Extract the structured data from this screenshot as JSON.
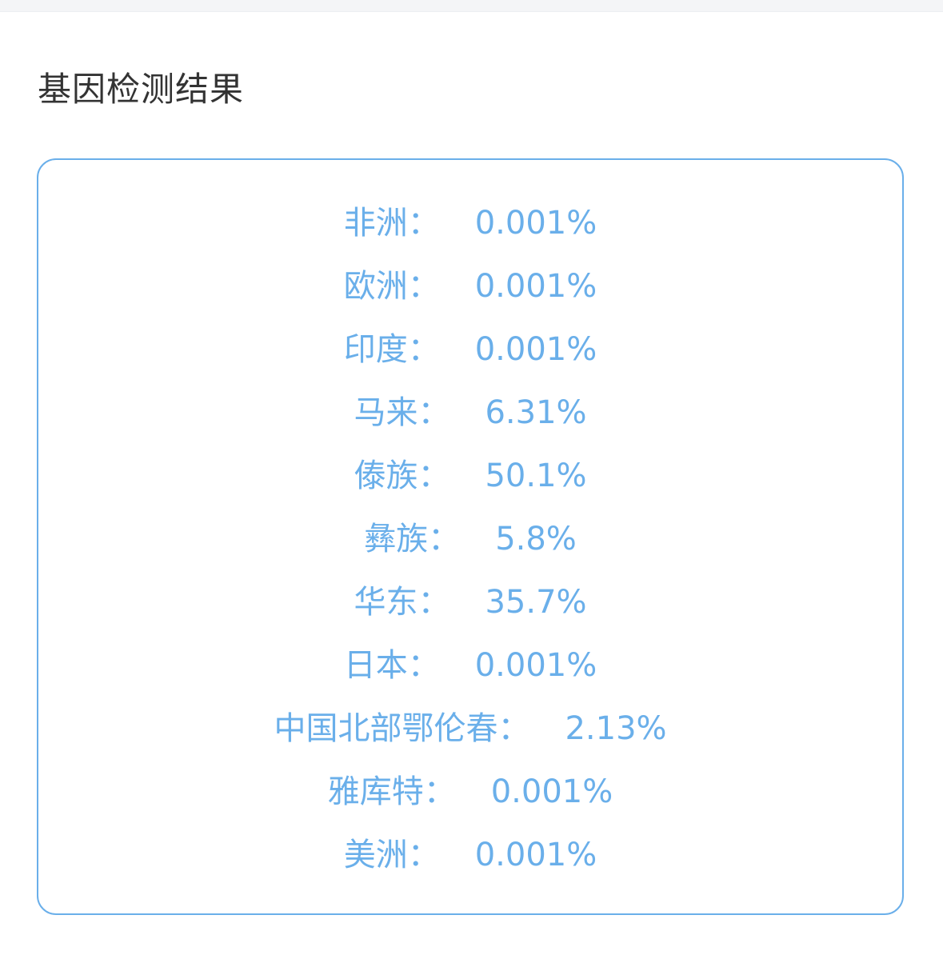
{
  "header": {
    "title": "基因检测结果"
  },
  "colors": {
    "accent": "#6aafea",
    "title": "#333333"
  },
  "results": [
    {
      "label": "非洲：",
      "value": "0.001%"
    },
    {
      "label": "欧洲：",
      "value": "0.001%"
    },
    {
      "label": "印度：",
      "value": "0.001%"
    },
    {
      "label": "马来：",
      "value": "6.31%"
    },
    {
      "label": "傣族：",
      "value": "50.1%"
    },
    {
      "label": "彝族：",
      "value": "5.8%"
    },
    {
      "label": "华东：",
      "value": "35.7%"
    },
    {
      "label": "日本：",
      "value": "0.001%"
    },
    {
      "label": "中国北部鄂伦春：",
      "value": "2.13%"
    },
    {
      "label": "雅库特：",
      "value": "0.001%"
    },
    {
      "label": "美洲：",
      "value": "0.001%"
    }
  ]
}
